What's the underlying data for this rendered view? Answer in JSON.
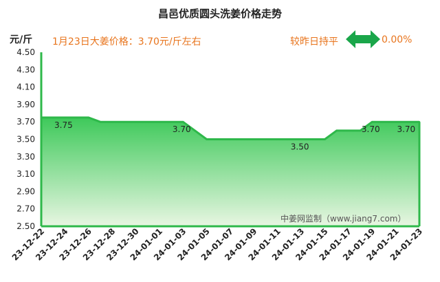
{
  "chart_data": {
    "type": "area",
    "title": "昌邑优质圆头洗姜价格走势",
    "ylabel": "元/斤",
    "ylim": [
      2.5,
      4.5
    ],
    "yticks": [
      "4.50",
      "4.30",
      "4.10",
      "3.90",
      "3.70",
      "3.50",
      "3.30",
      "3.10",
      "2.90",
      "2.70",
      "2.50"
    ],
    "xtick_labels": [
      "23-12-22",
      "23-12-24",
      "23-12-26",
      "23-12-28",
      "23-12-30",
      "24-01-01",
      "24-01-03",
      "24-01-05",
      "24-01-07",
      "24-01-09",
      "24-01-11",
      "24-01-13",
      "24-01-15",
      "24-01-17",
      "24-01-19",
      "24-01-21",
      "24-01-23"
    ],
    "x": [
      "23-12-22",
      "23-12-23",
      "23-12-24",
      "23-12-25",
      "23-12-26",
      "23-12-27",
      "23-12-28",
      "23-12-29",
      "23-12-30",
      "23-12-31",
      "24-01-01",
      "24-01-02",
      "24-01-03",
      "24-01-04",
      "24-01-05",
      "24-01-06",
      "24-01-07",
      "24-01-08",
      "24-01-09",
      "24-01-10",
      "24-01-11",
      "24-01-12",
      "24-01-13",
      "24-01-14",
      "24-01-15",
      "24-01-16",
      "24-01-17",
      "24-01-18",
      "24-01-19",
      "24-01-20",
      "24-01-21",
      "24-01-22",
      "24-01-23"
    ],
    "values": [
      3.75,
      3.75,
      3.75,
      3.75,
      3.75,
      3.7,
      3.7,
      3.7,
      3.7,
      3.7,
      3.7,
      3.7,
      3.7,
      3.6,
      3.5,
      3.5,
      3.5,
      3.5,
      3.5,
      3.5,
      3.5,
      3.5,
      3.5,
      3.5,
      3.5,
      3.6,
      3.6,
      3.6,
      3.7,
      3.7,
      3.7,
      3.7,
      3.7
    ],
    "data_labels": [
      {
        "x": "23-12-24",
        "text": "3.75"
      },
      {
        "x": "24-01-03",
        "text": "3.70"
      },
      {
        "x": "24-01-13",
        "text": "3.50"
      },
      {
        "x": "24-01-19",
        "text": "3.70"
      },
      {
        "x": "24-01-22",
        "text": "3.70"
      }
    ],
    "grid": false,
    "colors": {
      "line": "#2eb84a",
      "fill_top": "#3ec95a",
      "fill_bottom": "#e8f6e2",
      "axis": "#2eb84a"
    }
  },
  "header": {
    "price_note": "1月23日大姜价格：3.70元/斤左右",
    "compare_text": "较昨日持平",
    "change_text": "0.00%",
    "arrow_icon": "double-arrow-icon",
    "arrow_color": "#1aa64a"
  },
  "watermark": "中姜网监制（www.jiang7.com）"
}
